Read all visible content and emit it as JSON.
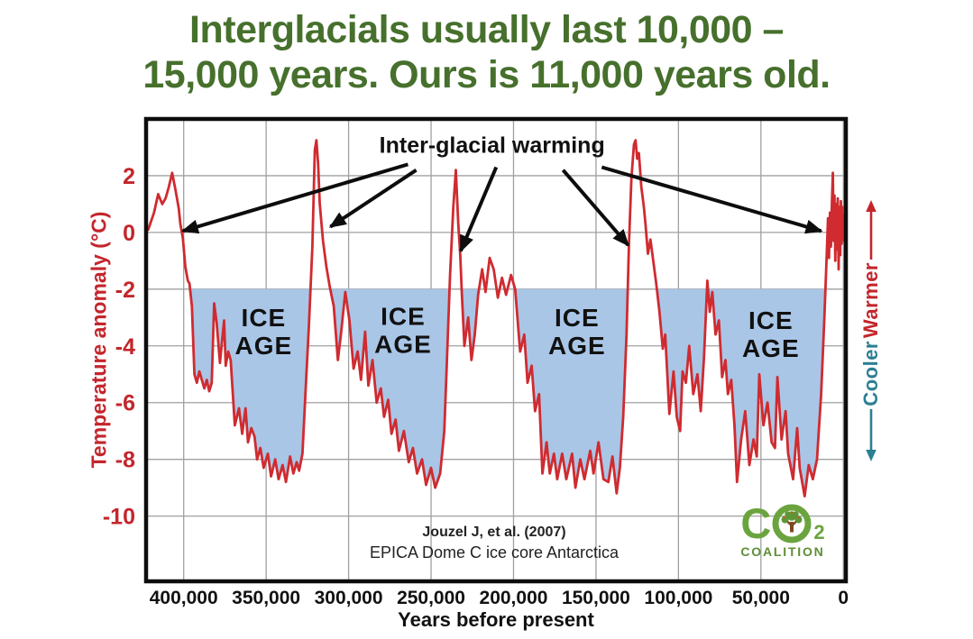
{
  "slide_title": {
    "line1": "Interglacials usually last 10,000 –",
    "line2": "15,000 years. Ours is 11,000 years old.",
    "color": "#46702c"
  },
  "source": {
    "line1": "Jouzel J, et al. (2007)",
    "line2": "EPICA Dome C ice core Antarctica"
  },
  "side_scale": {
    "warmer": "Warmer",
    "cooler": "Cooler",
    "warmer_color": "#c3262c",
    "cooler_color": "#2c7f93"
  },
  "logo": {
    "c": "C",
    "o2_sub": "2",
    "word": "COALITION",
    "green": "#6ba43f"
  },
  "chart_data": {
    "type": "line",
    "title": "",
    "xlabel": "Years before present",
    "ylabel": "Temperature anomaly (°C)",
    "x_unit": "thousand years before present (plotted right-to-left, 0 at right)",
    "y_unit": "°C",
    "xlim": [
      422.8,
      -1.5
    ],
    "ylim": [
      4,
      -12.3
    ],
    "grid": true,
    "x_ticks": {
      "values": [
        400,
        350,
        300,
        250,
        200,
        150,
        100,
        50,
        0
      ],
      "labels": [
        "400,000",
        "350,000",
        "300,000",
        "250,000",
        "200,000",
        "150,000",
        "100,000",
        "50,000",
        "0"
      ]
    },
    "y_ticks": [
      2,
      0,
      -2,
      -4,
      -6,
      -8,
      -10
    ],
    "ice_age_threshold": -2,
    "ice_age_labels": {
      "line1": "ICE",
      "line2": "AGE",
      "positions": [
        {
          "t": 351.5,
          "T": -3.5
        },
        {
          "t": 267,
          "T": -3.45
        },
        {
          "t": 161.5,
          "T": -3.5
        },
        {
          "t": 44,
          "T": -3.6
        }
      ]
    },
    "annotation": {
      "label": "Inter-glacial warming",
      "t": 213,
      "T": 3.05,
      "arrows": [
        {
          "from": [
            264,
            2.4
          ],
          "to": [
            400.5,
            0.05
          ]
        },
        {
          "from": [
            259,
            2.2
          ],
          "to": [
            311,
            0.2
          ]
        },
        {
          "from": [
            210.5,
            2.3
          ],
          "to": [
            232,
            -0.65
          ]
        },
        {
          "from": [
            170,
            2.2
          ],
          "to": [
            130.5,
            -0.45
          ]
        },
        {
          "from": [
            146.5,
            2.3
          ],
          "to": [
            13.5,
            0.05
          ]
        }
      ]
    },
    "colors": {
      "line": "#cf2b30",
      "ice_age_fill": "#a9c6e7",
      "grid": "#a0a0a0",
      "border": "#0d0d0d",
      "axis_text_red": "#c3262c",
      "axis_text_black": "#111111"
    },
    "series": [
      {
        "name": "Antarctic temperature anomaly (EPICA Dome C)",
        "points_t_kyr_T_degC": [
          [
            421.5,
            0.1
          ],
          [
            418,
            0.7
          ],
          [
            415.5,
            1.35
          ],
          [
            413,
            1.0
          ],
          [
            411,
            1.2
          ],
          [
            409,
            1.6
          ],
          [
            407,
            2.1
          ],
          [
            405,
            1.5
          ],
          [
            403,
            0.85
          ],
          [
            402,
            0.3
          ],
          [
            400.5,
            -0.2
          ],
          [
            399,
            -1.2
          ],
          [
            397.5,
            -1.7
          ],
          [
            396.5,
            -1.8
          ],
          [
            395,
            -2.6
          ],
          [
            393.5,
            -5.0
          ],
          [
            392,
            -5.3
          ],
          [
            390.5,
            -4.9
          ],
          [
            389,
            -5.2
          ],
          [
            387.5,
            -5.5
          ],
          [
            386,
            -5.2
          ],
          [
            384.5,
            -5.6
          ],
          [
            383,
            -5.3
          ],
          [
            381.5,
            -2.5
          ],
          [
            380,
            -3.2
          ],
          [
            378,
            -4.6
          ],
          [
            375.5,
            -3.1
          ],
          [
            374.5,
            -4.7
          ],
          [
            373,
            -4.2
          ],
          [
            371.5,
            -4.5
          ],
          [
            369,
            -6.8
          ],
          [
            366.5,
            -6.2
          ],
          [
            364.5,
            -7.1
          ],
          [
            362.5,
            -6.2
          ],
          [
            361,
            -7.4
          ],
          [
            359,
            -6.9
          ],
          [
            357,
            -7.2
          ],
          [
            355.5,
            -8.0
          ],
          [
            353.5,
            -7.6
          ],
          [
            351.5,
            -8.3
          ],
          [
            349,
            -7.8
          ],
          [
            347,
            -8.6
          ],
          [
            344.5,
            -8.0
          ],
          [
            342.5,
            -8.7
          ],
          [
            340,
            -8.2
          ],
          [
            338,
            -8.8
          ],
          [
            335.5,
            -7.9
          ],
          [
            333.5,
            -8.5
          ],
          [
            331.5,
            -8.1
          ],
          [
            330,
            -8.4
          ],
          [
            328,
            -7.8
          ],
          [
            326,
            -5.5
          ],
          [
            324,
            -3.2
          ],
          [
            322,
            -0.5
          ],
          [
            320.5,
            2.9
          ],
          [
            319.5,
            3.25
          ],
          [
            318.5,
            2.4
          ],
          [
            317.5,
            1.0
          ],
          [
            316.5,
            0.35
          ],
          [
            315.5,
            -0.3
          ],
          [
            313.5,
            -1.2
          ],
          [
            311.5,
            -1.9
          ],
          [
            309,
            -2.6
          ],
          [
            306.5,
            -4.5
          ],
          [
            304.5,
            -3.5
          ],
          [
            302,
            -2.1
          ],
          [
            299.5,
            -3.1
          ],
          [
            297,
            -4.8
          ],
          [
            294.5,
            -4.2
          ],
          [
            292.5,
            -5.2
          ],
          [
            290,
            -3.5
          ],
          [
            288,
            -5.4
          ],
          [
            285.5,
            -4.5
          ],
          [
            283,
            -6.0
          ],
          [
            280.5,
            -5.5
          ],
          [
            278.5,
            -6.5
          ],
          [
            276,
            -5.9
          ],
          [
            274,
            -7.1
          ],
          [
            271.5,
            -6.6
          ],
          [
            269.5,
            -7.7
          ],
          [
            266.5,
            -7.0
          ],
          [
            263.5,
            -8.1
          ],
          [
            261,
            -7.6
          ],
          [
            258.5,
            -8.5
          ],
          [
            255.5,
            -8.0
          ],
          [
            253,
            -8.9
          ],
          [
            250,
            -8.3
          ],
          [
            247.5,
            -9.0
          ],
          [
            244.5,
            -8.5
          ],
          [
            242,
            -7.0
          ],
          [
            240.5,
            -4.7
          ],
          [
            238.5,
            -1.5
          ],
          [
            236.5,
            0.9
          ],
          [
            235,
            2.2
          ],
          [
            233.5,
            0.3
          ],
          [
            232.3,
            -0.8
          ],
          [
            231.3,
            -2.2
          ],
          [
            229.8,
            -4.0
          ],
          [
            227.5,
            -3.0
          ],
          [
            225.5,
            -4.5
          ],
          [
            223.5,
            -3.6
          ],
          [
            221.5,
            -2.2
          ],
          [
            219,
            -1.3
          ],
          [
            217,
            -2.1
          ],
          [
            214.5,
            -0.9
          ],
          [
            212,
            -1.3
          ],
          [
            209.5,
            -2.3
          ],
          [
            207,
            -1.6
          ],
          [
            204.5,
            -2.2
          ],
          [
            201.5,
            -1.5
          ],
          [
            199,
            -2.0
          ],
          [
            196,
            -4.2
          ],
          [
            193.5,
            -3.6
          ],
          [
            191.5,
            -5.3
          ],
          [
            189,
            -4.7
          ],
          [
            187,
            -6.3
          ],
          [
            184.5,
            -5.7
          ],
          [
            182.5,
            -8.5
          ],
          [
            180,
            -7.4
          ],
          [
            178,
            -8.5
          ],
          [
            175.5,
            -7.8
          ],
          [
            173.5,
            -8.7
          ],
          [
            170.5,
            -7.8
          ],
          [
            168,
            -8.7
          ],
          [
            164.5,
            -7.8
          ],
          [
            162.5,
            -9.0
          ],
          [
            159.5,
            -8.0
          ],
          [
            157,
            -8.7
          ],
          [
            153.5,
            -7.7
          ],
          [
            151.5,
            -8.5
          ],
          [
            148.5,
            -7.4
          ],
          [
            145.5,
            -8.7
          ],
          [
            142.5,
            -8.8
          ],
          [
            140,
            -7.9
          ],
          [
            137.5,
            -9.2
          ],
          [
            135.5,
            -8.3
          ],
          [
            133.5,
            -6.5
          ],
          [
            131.5,
            -3.6
          ],
          [
            130,
            -0.4
          ],
          [
            128.5,
            1.9
          ],
          [
            127,
            3.1
          ],
          [
            126,
            3.25
          ],
          [
            125,
            2.6
          ],
          [
            124,
            2.8
          ],
          [
            122.5,
            1.6
          ],
          [
            121,
            0.9
          ],
          [
            120,
            0.3
          ],
          [
            118.5,
            -0.75
          ],
          [
            117,
            -0.25
          ],
          [
            115.5,
            -0.9
          ],
          [
            113.5,
            -1.8
          ],
          [
            111.5,
            -2.8
          ],
          [
            109.5,
            -4.1
          ],
          [
            108,
            -3.6
          ],
          [
            105.5,
            -6.4
          ],
          [
            103,
            -4.9
          ],
          [
            101,
            -6.5
          ],
          [
            99,
            -7.0
          ],
          [
            97.5,
            -4.9
          ],
          [
            95.5,
            -5.3
          ],
          [
            93.5,
            -4.0
          ],
          [
            91,
            -5.7
          ],
          [
            88.5,
            -5.0
          ],
          [
            86.5,
            -6.3
          ],
          [
            84.5,
            -4.4
          ],
          [
            82.5,
            -1.7
          ],
          [
            81,
            -2.8
          ],
          [
            79.5,
            -2.1
          ],
          [
            77.5,
            -3.6
          ],
          [
            75.5,
            -3.1
          ],
          [
            73.5,
            -5.1
          ],
          [
            71.5,
            -4.5
          ],
          [
            70,
            -5.7
          ],
          [
            68,
            -5.2
          ],
          [
            66,
            -6.8
          ],
          [
            64.5,
            -8.8
          ],
          [
            62,
            -7.3
          ],
          [
            59.5,
            -6.3
          ],
          [
            57,
            -8.2
          ],
          [
            54.5,
            -7.3
          ],
          [
            52.5,
            -7.9
          ],
          [
            51,
            -5.0
          ],
          [
            48.5,
            -6.8
          ],
          [
            46,
            -6.0
          ],
          [
            43.5,
            -7.4
          ],
          [
            41.5,
            -7.6
          ],
          [
            40,
            -5.1
          ],
          [
            37.5,
            -7.3
          ],
          [
            35,
            -6.3
          ],
          [
            33.5,
            -7.8
          ],
          [
            30.5,
            -8.7
          ],
          [
            28,
            -6.9
          ],
          [
            26.5,
            -8.3
          ],
          [
            23.5,
            -9.3
          ],
          [
            21,
            -8.2
          ],
          [
            18.5,
            -8.7
          ],
          [
            16,
            -8.0
          ],
          [
            13.5,
            -5.7
          ],
          [
            11.5,
            -3.0
          ],
          [
            10,
            -0.6
          ],
          [
            9.3,
            0.5
          ],
          [
            8.7,
            -0.9
          ],
          [
            8.1,
            0.7
          ],
          [
            7.5,
            -0.5
          ],
          [
            7.0,
            1.0
          ],
          [
            6.4,
            2.1
          ],
          [
            5.9,
            -0.3
          ],
          [
            5.4,
            1.3
          ],
          [
            4.9,
            -1.0
          ],
          [
            4.4,
            1.0
          ],
          [
            3.9,
            -0.6
          ],
          [
            3.4,
            1.2
          ],
          [
            2.9,
            -1.3
          ],
          [
            2.4,
            0.9
          ],
          [
            1.9,
            -0.8
          ],
          [
            1.5,
            1.1
          ],
          [
            1.1,
            -0.4
          ],
          [
            0.7,
            0.9
          ],
          [
            0.3,
            -0.2
          ],
          [
            0,
            0.6
          ],
          [
            -0.5,
            -0.3
          ],
          [
            -1.0,
            0.4
          ]
        ]
      }
    ]
  }
}
